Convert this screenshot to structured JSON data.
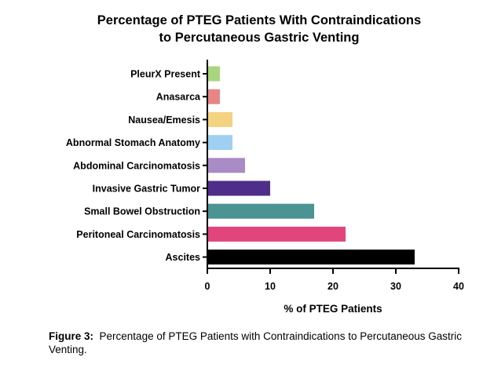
{
  "chart_data": {
    "type": "bar",
    "orientation": "horizontal",
    "title_lines": [
      "Percentage of PTEG Patients With Contraindications",
      "to Percutaneous Gastric Venting"
    ],
    "xlabel": "% of PTEG Patients",
    "ylabel": "",
    "xlim": [
      0,
      40
    ],
    "xticks": [
      "0",
      "10",
      "20",
      "30",
      "40"
    ],
    "categories": [
      "PleurX Present",
      "Anasarca",
      "Nausea/Emesis",
      "Abnormal Stomach Anatomy",
      "Abdominal Carcinomatosis",
      "Invasive Gastric Tumor",
      "Small Bowel Obstruction",
      "Peritoneal Carcinomatosis",
      "Ascites"
    ],
    "values": [
      2,
      2,
      4,
      4,
      6,
      10,
      17,
      22,
      33
    ],
    "colors": [
      "#a8d67e",
      "#e88585",
      "#f3d280",
      "#9fd0f3",
      "#a98bc6",
      "#4f2d8a",
      "#4c9393",
      "#e2457b",
      "#000000"
    ],
    "grid": false,
    "legend": "none"
  },
  "caption": {
    "label": "Figure 3:",
    "text": "Percentage of PTEG Patients with Contraindications to Percutaneous Gastric Venting."
  }
}
